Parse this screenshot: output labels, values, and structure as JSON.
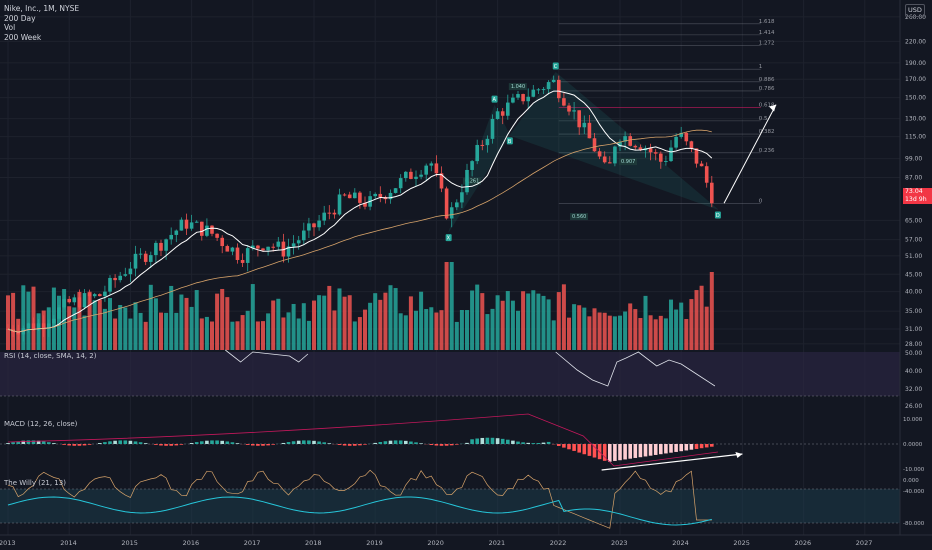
{
  "legend": {
    "symbol": "Nike, Inc., 1M, NYSE",
    "line1": "200 Day",
    "line2": "Vol",
    "line3": "200 Week"
  },
  "currency": "USD",
  "price_tags": {
    "last": "73.04",
    "countdown": "13d 9h"
  },
  "panes": {
    "rsi_label": "RSI (14, close, SMA, 14, 2)",
    "macd_label": "MACD (12, 26, close)",
    "willr_label": "The Willy (21, 13)"
  },
  "colors": {
    "background": "#131722",
    "up": "#26a69a",
    "down": "#ef5350",
    "ma_fast": "#ffffff",
    "ma_slow": "#d7a36a",
    "fib": "#c2185b",
    "rsi_band": "#2a2540",
    "willr_band": "#1b3a48",
    "macd_signal": "#c2185b",
    "arrow": "#ffffff"
  },
  "chart_data": {
    "type": "candlestick",
    "interval": "1M",
    "x_axis_labels": [
      "2013",
      "2014",
      "2015",
      "2016",
      "2017",
      "2018",
      "2019",
      "2020",
      "2021",
      "2022",
      "2023",
      "2024",
      "2025",
      "2026",
      "2027"
    ],
    "price_axis": {
      "scale": "log",
      "ticks": [
        "260.00",
        "220.00",
        "190.00",
        "170.00",
        "150.00",
        "130.00",
        "115.00",
        "99.00",
        "87.00",
        "65.00",
        "57.00",
        "51.00",
        "45.00",
        "40.00",
        "35.00",
        "31.00",
        "28.00"
      ]
    },
    "ohlc_anchors": [
      {
        "t": 2013.0,
        "close": 31
      },
      {
        "t": 2013.5,
        "close": 32
      },
      {
        "t": 2014.0,
        "close": 37
      },
      {
        "t": 2014.5,
        "close": 39
      },
      {
        "t": 2015.0,
        "close": 48
      },
      {
        "t": 2015.4,
        "close": 54
      },
      {
        "t": 2015.9,
        "close": 64
      },
      {
        "t": 2016.3,
        "close": 60
      },
      {
        "t": 2016.8,
        "close": 51
      },
      {
        "t": 2017.2,
        "close": 56
      },
      {
        "t": 2017.5,
        "close": 53
      },
      {
        "t": 2017.9,
        "close": 60
      },
      {
        "t": 2018.5,
        "close": 76
      },
      {
        "t": 2018.9,
        "close": 73
      },
      {
        "t": 2019.4,
        "close": 84
      },
      {
        "t": 2019.9,
        "close": 98
      },
      {
        "t": 2020.2,
        "close": 66
      },
      {
        "t": 2020.6,
        "close": 98
      },
      {
        "t": 2021.0,
        "close": 135
      },
      {
        "t": 2021.4,
        "close": 150
      },
      {
        "t": 2021.9,
        "close": 168
      },
      {
        "t": 2022.2,
        "close": 140
      },
      {
        "t": 2022.6,
        "close": 105
      },
      {
        "t": 2022.8,
        "close": 88
      },
      {
        "t": 2022.95,
        "close": 118
      },
      {
        "t": 2023.4,
        "close": 108
      },
      {
        "t": 2023.7,
        "close": 96
      },
      {
        "t": 2023.95,
        "close": 118
      },
      {
        "t": 2024.3,
        "close": 95
      },
      {
        "t": 2024.55,
        "close": 73
      }
    ],
    "fib_levels": [
      "1.618",
      "1.414",
      "1.272",
      "1",
      "0.886",
      "0.786",
      "0.618",
      "0.5",
      "0.382",
      "0.236",
      "0"
    ],
    "pattern_points": [
      {
        "id": "X",
        "t": 2020.2,
        "price": 60
      },
      {
        "id": "A",
        "t": 2020.95,
        "price": 142
      },
      {
        "id": "B",
        "t": 2021.2,
        "price": 116
      },
      {
        "id": "C",
        "t": 2021.95,
        "price": 178
      },
      {
        "id": "D",
        "t": 2024.6,
        "price": 70
      }
    ],
    "pattern_ratios": [
      "0.261",
      "1.040",
      "0.907",
      "0.560"
    ],
    "projection": {
      "from_t": 2024.7,
      "from_price": 73,
      "to_t": 2025.55,
      "to_price": 143
    },
    "rsi_axis": [
      "50.00",
      "40.00",
      "32.00",
      "26.00"
    ],
    "macd_axis": [
      "10.000",
      "0.0000",
      "-10.000"
    ],
    "willr_axis": [
      "0.000",
      "-40.000",
      "-80.000"
    ],
    "volume": "shown",
    "grid": true
  }
}
